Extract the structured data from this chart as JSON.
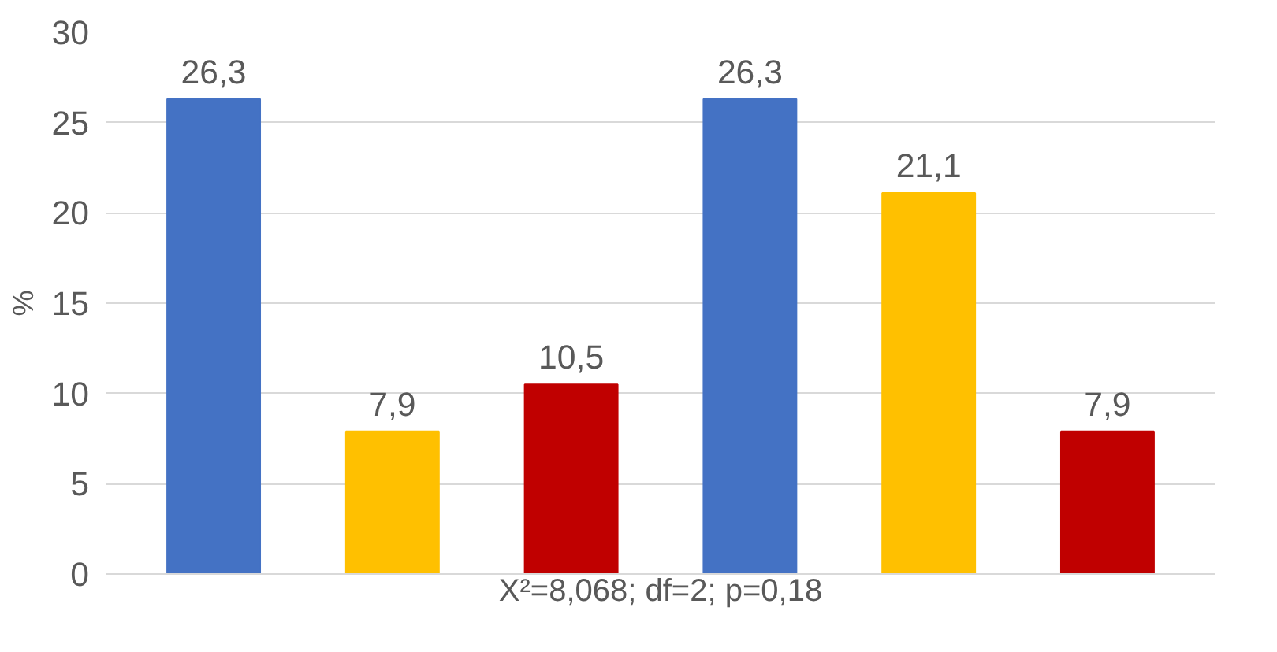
{
  "chart_data": {
    "type": "bar",
    "ylabel": "%",
    "xlabel": "X²=8,068; df=2; p=0,18",
    "categories": [
      null,
      null,
      null,
      null,
      null,
      null
    ],
    "values": [
      26.3,
      7.9,
      10.5,
      26.3,
      21.1,
      7.9
    ],
    "colors": [
      "#4472c4",
      "#ffc000",
      "#c00000",
      "#4472c4",
      "#ffc000",
      "#c00000"
    ],
    "value_labels": [
      "26,3",
      "7,9",
      "10,5",
      "26,3",
      "21,1",
      "7,9"
    ],
    "ylim": [
      0,
      30
    ],
    "yticks": [
      0,
      5,
      10,
      15,
      20,
      25,
      30
    ],
    "grid": "y",
    "tick_labels": "y"
  }
}
